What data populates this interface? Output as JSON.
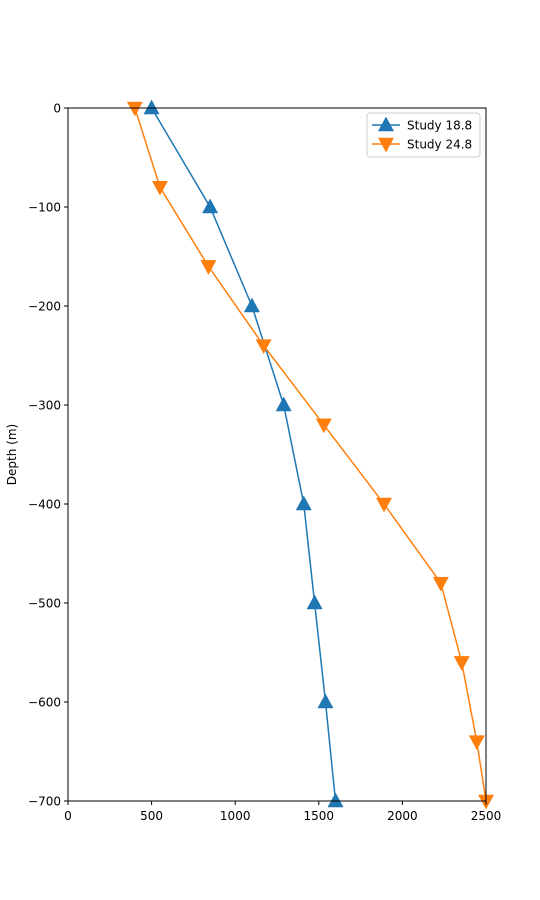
{
  "chart_data": {
    "type": "line",
    "title": "",
    "xlabel": "",
    "ylabel": "Depth (m)",
    "xlim": [
      0,
      2500
    ],
    "ylim": [
      -700,
      0
    ],
    "xticks": [
      0,
      500,
      1000,
      1500,
      2000,
      2500
    ],
    "yticks": [
      0,
      -100,
      -200,
      -300,
      -400,
      -500,
      -600,
      -700
    ],
    "ytick_labels": [
      "0",
      "−100",
      "−200",
      "−300",
      "−400",
      "−500",
      "−600",
      "−700"
    ],
    "grid": false,
    "legend_position": "top-right",
    "series": [
      {
        "name": "Study 18.8",
        "color": "#1f77b4",
        "marker": "triangle-up",
        "x": [
          500,
          850,
          1100,
          1290,
          1410,
          1475,
          1540,
          1600
        ],
        "y": [
          0,
          -100,
          -200,
          -300,
          -400,
          -500,
          -600,
          -700
        ]
      },
      {
        "name": "Study 24.8",
        "color": "#ff7f0e",
        "marker": "triangle-down",
        "x": [
          400,
          550,
          840,
          1170,
          1530,
          1890,
          2230,
          2355,
          2445,
          2500
        ],
        "y": [
          0,
          -80,
          -160,
          -240,
          -320,
          -400,
          -480,
          -560,
          -640,
          -700
        ]
      }
    ]
  }
}
